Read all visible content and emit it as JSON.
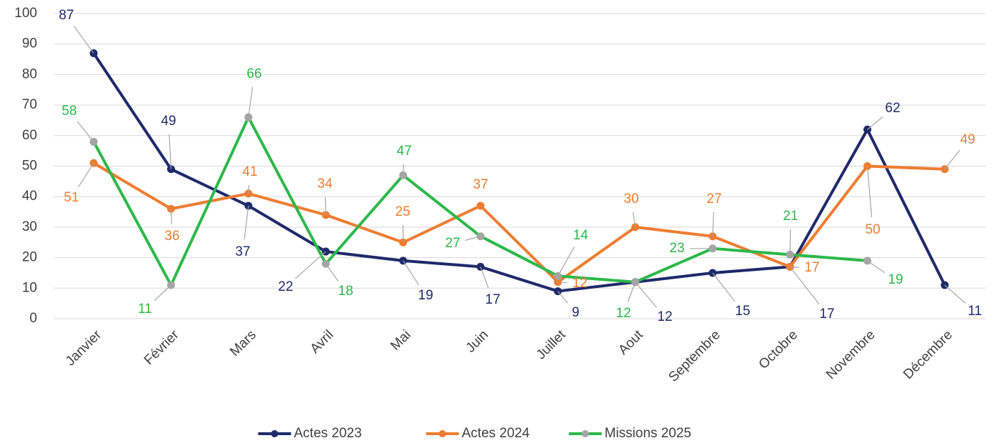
{
  "chart_data": {
    "type": "line",
    "categories": [
      "Janvier",
      "Février",
      "Mars",
      "Avril",
      "Mai",
      "Juin",
      "Juillet",
      "Aout",
      "Septembre",
      "Octobre",
      "Novembre",
      "Décembre"
    ],
    "series": [
      {
        "name": "Actes 2023",
        "color": "#1f2a6b",
        "values": [
          87,
          49,
          37,
          22,
          19,
          17,
          9,
          12,
          15,
          17,
          62,
          11
        ]
      },
      {
        "name": "Actes 2024",
        "color": "#ed7d31",
        "values": [
          51,
          36,
          41,
          34,
          25,
          37,
          12,
          30,
          27,
          17,
          50,
          49
        ]
      },
      {
        "name": "Missions 2025",
        "color": "#2db84a",
        "values": [
          58,
          11,
          66,
          18,
          47,
          27,
          14,
          12,
          23,
          21,
          19,
          null
        ]
      }
    ],
    "ylim": [
      0,
      100
    ],
    "yticks": [
      0,
      10,
      20,
      30,
      40,
      50,
      60,
      70,
      80,
      90,
      100
    ],
    "grid": true,
    "legend": "bottom"
  }
}
